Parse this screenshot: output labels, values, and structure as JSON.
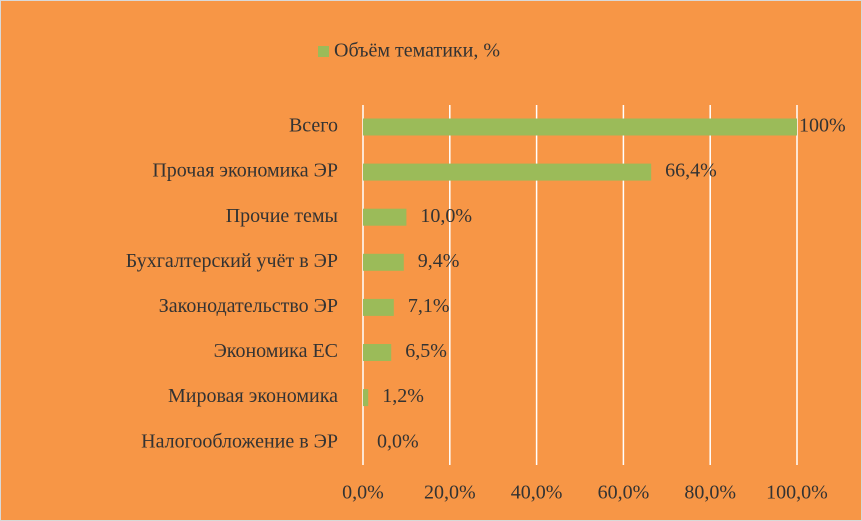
{
  "chart_data": {
    "type": "barh",
    "categories": [
      "Всего",
      "Прочая экономика ЭР",
      "Прочие темы",
      "Бухгалтерский учёт в ЭР",
      "Законодательство ЭР",
      "Экономика ЕС",
      "Мировая экономика",
      "Налогообложение в ЭР"
    ],
    "series": [
      {
        "name": "Объём тематики, %",
        "color": "#9bbb59",
        "values": [
          100,
          66.4,
          10.0,
          9.4,
          7.1,
          6.5,
          1.2,
          0.0
        ],
        "value_labels": [
          "100%",
          "66,4%",
          "10,0%",
          "9,4%",
          "7,1%",
          "6,5%",
          "1,2%",
          "0,0%"
        ]
      }
    ],
    "xlim": [
      0,
      100
    ],
    "xticks": [
      {
        "value": 0,
        "label": "0,0%"
      },
      {
        "value": 20,
        "label": "20,0%"
      },
      {
        "value": 40,
        "label": "40,0%"
      },
      {
        "value": 60,
        "label": "60,0%"
      },
      {
        "value": 80,
        "label": "80,0%"
      },
      {
        "value": 100,
        "label": "100,0%"
      }
    ],
    "grid": true,
    "legend": "top",
    "background": "#f79646"
  }
}
